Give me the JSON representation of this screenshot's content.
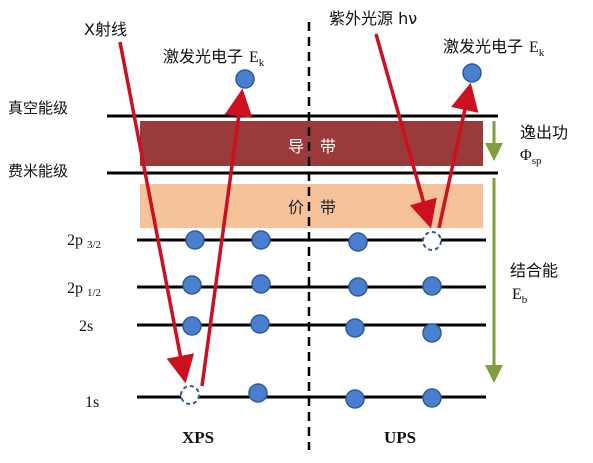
{
  "xps_side": {
    "xray_label": "X射线",
    "photoelectron_label": "激发光电子",
    "photoelectron_symbol": "E",
    "photoelectron_subscript": "k",
    "method_label": "XPS"
  },
  "ups_side": {
    "uv_label": "紫外光源 hν",
    "photoelectron_label": "激发光电子",
    "photoelectron_symbol": "E",
    "photoelectron_subscript": "k",
    "method_label": "UPS"
  },
  "levels": {
    "vacuum_level": "真空能级",
    "fermi_level": "费米能级",
    "conduction_band": "导　带",
    "valence_band": "价　带",
    "orbitals": [
      {
        "label": "2p",
        "subscript": "3/2"
      },
      {
        "label": "2p",
        "subscript": "1/2"
      },
      {
        "label": "2s",
        "subscript": ""
      },
      {
        "label": "1s",
        "subscript": ""
      }
    ]
  },
  "annotations": {
    "work_function_label": "逸出功",
    "work_function_symbol": "Φ",
    "work_function_subscript": "sp",
    "binding_energy_label": "结合能",
    "binding_energy_symbol": "E",
    "binding_energy_subscript": "b"
  },
  "colors": {
    "conduction_band": "#9a3a3a",
    "valence_band": "#f6c29a",
    "electron_fill": "#4a7fd0",
    "electron_stroke": "#2c5a9e",
    "arrow": "#cc1020",
    "measurement_arrow": "#7f9f3a",
    "level_line": "#000000"
  }
}
